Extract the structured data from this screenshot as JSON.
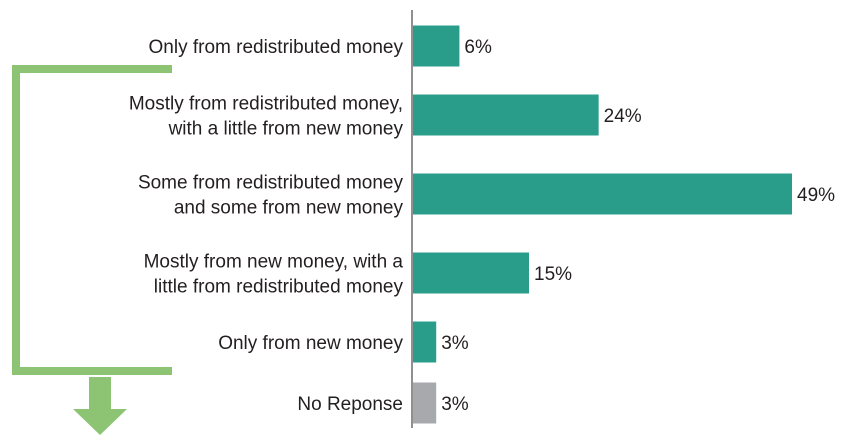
{
  "chart_data": {
    "type": "bar",
    "orientation": "horizontal",
    "categories": [
      [
        "Only from redistributed money"
      ],
      [
        "Mostly from redistributed money,",
        "with a little from new money"
      ],
      [
        "Some from redistributed money",
        "and some from new money"
      ],
      [
        "Mostly from new money, with a",
        "little from redistributed money"
      ],
      [
        "Only from new money"
      ],
      [
        "No Reponse"
      ]
    ],
    "values": [
      6,
      24,
      49,
      15,
      3,
      3
    ],
    "value_labels": [
      "6%",
      "24%",
      "49%",
      "15%",
      "3%",
      "3%"
    ],
    "bar_colors": [
      "#2a9c8a",
      "#2a9c8a",
      "#2a9c8a",
      "#2a9c8a",
      "#2a9c8a",
      "#a7a9ac"
    ],
    "xlim": [
      0,
      49
    ],
    "grid": false,
    "title": "",
    "xlabel": "",
    "ylabel": ""
  },
  "colors": {
    "primary_bar": "#2a9c8a",
    "no_response_bar": "#a7a9ac",
    "bracket_arrow": "#8cc474",
    "axis": "#231f20"
  }
}
